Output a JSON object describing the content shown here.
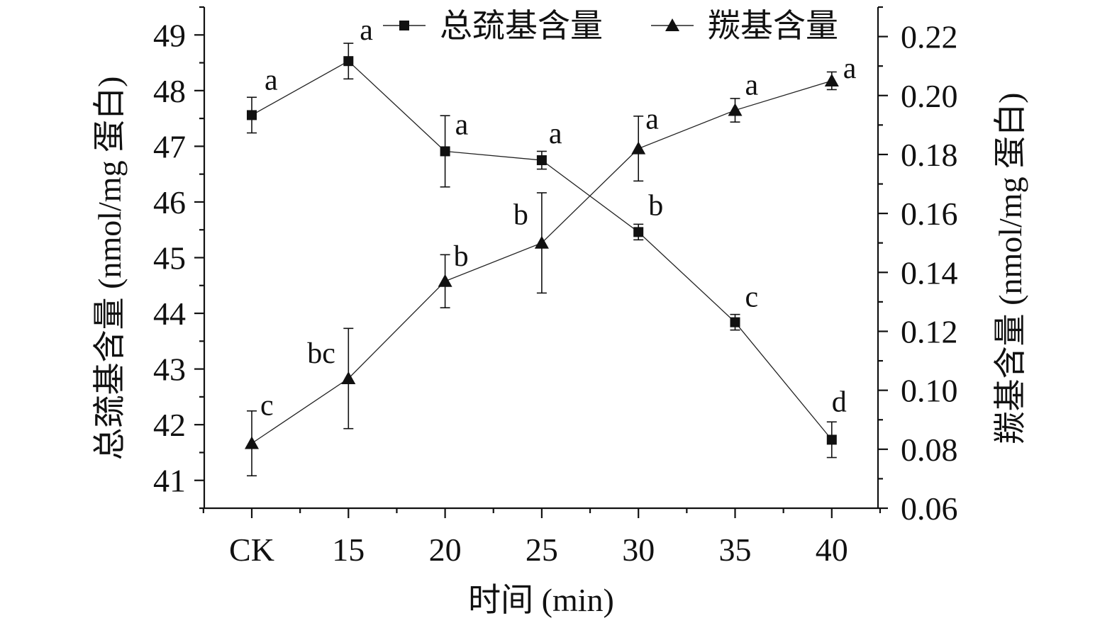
{
  "chart_data": {
    "type": "line",
    "x_axis": {
      "label": "时间 (min)",
      "categories": [
        "CK",
        "15",
        "20",
        "25",
        "30",
        "35",
        "40"
      ]
    },
    "y_axis_left": {
      "label": "总巯基含量 (nmol/mg 蛋白)",
      "ylim": [
        40.5,
        49.5
      ],
      "ticks": [
        41,
        42,
        43,
        44,
        45,
        46,
        47,
        48,
        49
      ]
    },
    "y_axis_right": {
      "label": "羰基含量 (nmol/mg 蛋白)",
      "ylim": [
        0.06,
        0.23
      ],
      "ticks": [
        "0.06",
        "0.08",
        "0.10",
        "0.12",
        "0.14",
        "0.16",
        "0.18",
        "0.20",
        "0.22"
      ]
    },
    "legend": {
      "placement": "top"
    },
    "series": [
      {
        "name": "总巯基含量",
        "axis": "left",
        "marker": "square",
        "values": [
          47.56,
          48.53,
          46.91,
          46.75,
          45.46,
          43.84,
          41.73
        ],
        "errors": [
          0.32,
          0.32,
          0.64,
          0.16,
          0.14,
          0.14,
          0.32
        ],
        "labels": [
          "a",
          "a",
          "a",
          "a",
          "b",
          "c",
          "d"
        ]
      },
      {
        "name": "羰基含量",
        "axis": "right",
        "marker": "triangle",
        "values": [
          0.082,
          0.104,
          0.137,
          0.15,
          0.182,
          0.195,
          0.205
        ],
        "errors": [
          0.011,
          0.017,
          0.009,
          0.017,
          0.011,
          0.004,
          0.003
        ],
        "labels": [
          "c",
          "bc",
          "b",
          "b",
          "a",
          "a",
          "a"
        ]
      }
    ]
  }
}
